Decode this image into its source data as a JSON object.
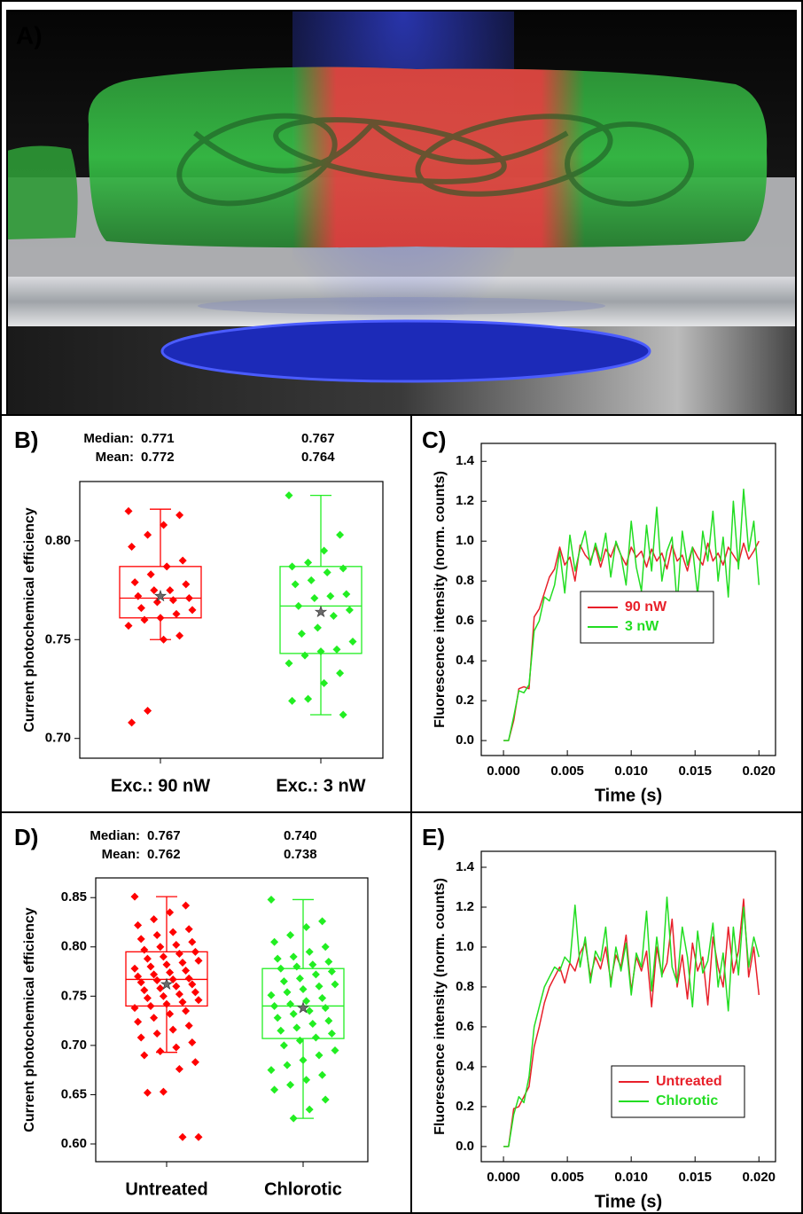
{
  "panel_a": {
    "label": "A)"
  },
  "chart_data": [
    {
      "type": "box",
      "panel_label": "B)",
      "ylabel": "Current photochemical efficiency",
      "stat_names": [
        "Median:",
        "Mean:"
      ],
      "ylim": [
        0.69,
        0.83
      ],
      "yticks": [
        {
          "value": 0.7,
          "label": "0.70"
        },
        {
          "value": 0.75,
          "label": "0.75"
        },
        {
          "value": 0.8,
          "label": "0.80"
        }
      ],
      "series": [
        {
          "name": "Exc.: 90 nW",
          "color": "#ff0000",
          "median": 0.771,
          "median_label": "0.771",
          "mean": 0.772,
          "mean_label": "0.772",
          "q1": 0.761,
          "q3": 0.787,
          "whisker_low": 0.75,
          "whisker_high": 0.816,
          "points": [
            0.815,
            0.813,
            0.808,
            0.803,
            0.797,
            0.79,
            0.787,
            0.783,
            0.779,
            0.778,
            0.775,
            0.775,
            0.772,
            0.771,
            0.77,
            0.769,
            0.766,
            0.765,
            0.763,
            0.761,
            0.76,
            0.757,
            0.752,
            0.75,
            0.714,
            0.708
          ]
        },
        {
          "name": "Exc.: 3 nW",
          "color": "#22ee22",
          "median": 0.767,
          "median_label": "0.767",
          "mean": 0.764,
          "mean_label": "0.764",
          "q1": 0.743,
          "q3": 0.787,
          "whisker_low": 0.712,
          "whisker_high": 0.823,
          "points": [
            0.823,
            0.803,
            0.795,
            0.789,
            0.787,
            0.786,
            0.784,
            0.78,
            0.778,
            0.773,
            0.772,
            0.771,
            0.767,
            0.765,
            0.762,
            0.756,
            0.753,
            0.749,
            0.745,
            0.744,
            0.742,
            0.738,
            0.733,
            0.728,
            0.72,
            0.719,
            0.712
          ]
        }
      ]
    },
    {
      "type": "line",
      "panel_label": "C)",
      "ylabel": "Fluorescence intensity (norm. counts)",
      "xlabel": "Time (s)",
      "legend": "center right",
      "xlim": [
        -0.00174,
        0.0213
      ],
      "ylim": [
        -0.075,
        1.49
      ],
      "xticks": [
        {
          "value": 0,
          "label": "0.000"
        },
        {
          "value": 0.005,
          "label": "0.005"
        },
        {
          "value": 0.01,
          "label": "0.010"
        },
        {
          "value": 0.015,
          "label": "0.015"
        },
        {
          "value": 0.02,
          "label": "0.020"
        }
      ],
      "yticks": [
        {
          "value": 0,
          "label": "0.0"
        },
        {
          "value": 0.2,
          "label": "0.2"
        },
        {
          "value": 0.4,
          "label": "0.4"
        },
        {
          "value": 0.6,
          "label": "0.6"
        },
        {
          "value": 0.8,
          "label": "0.8"
        },
        {
          "value": 1,
          "label": "1.0"
        },
        {
          "value": 1.2,
          "label": "1.2"
        },
        {
          "value": 1.4,
          "label": "1.4"
        }
      ],
      "x": [
        0,
        0.0004,
        0.0008,
        0.0012,
        0.0016,
        0.002,
        0.0024,
        0.0028,
        0.0032,
        0.0036,
        0.004,
        0.0044,
        0.0048,
        0.0052,
        0.0056,
        0.006,
        0.0064,
        0.0068,
        0.0072,
        0.0076,
        0.008,
        0.0084,
        0.0088,
        0.0092,
        0.0096,
        0.01,
        0.0104,
        0.0108,
        0.0112,
        0.0116,
        0.012,
        0.0124,
        0.0128,
        0.0132,
        0.0136,
        0.014,
        0.0144,
        0.0148,
        0.0152,
        0.0156,
        0.016,
        0.0164,
        0.0168,
        0.0172,
        0.0176,
        0.018,
        0.0184,
        0.0188,
        0.0192,
        0.0196,
        0.02
      ],
      "series": [
        {
          "name": "90 nW",
          "color": "#e8202a",
          "values": [
            0,
            0,
            0.1,
            0.26,
            0.27,
            0.26,
            0.62,
            0.66,
            0.74,
            0.82,
            0.86,
            0.97,
            0.88,
            0.92,
            0.8,
            0.98,
            0.93,
            0.9,
            0.97,
            0.87,
            0.96,
            0.92,
            0.99,
            0.93,
            0.88,
            0.97,
            0.92,
            0.95,
            0.87,
            0.96,
            0.9,
            0.94,
            0.86,
            0.98,
            0.9,
            0.93,
            0.85,
            0.97,
            0.92,
            0.88,
            0.99,
            0.9,
            0.94,
            0.88,
            0.97,
            0.93,
            0.89,
            0.99,
            0.91,
            0.95,
            1.0
          ]
        },
        {
          "name": "3 nW",
          "color": "#22dd22",
          "values": [
            0,
            0,
            0.12,
            0.25,
            0.24,
            0.28,
            0.55,
            0.6,
            0.72,
            0.7,
            0.78,
            0.95,
            0.74,
            1.03,
            0.85,
            0.96,
            1.05,
            0.88,
            0.99,
            0.9,
            1.04,
            0.82,
            1.0,
            0.93,
            0.78,
            1.1,
            0.87,
            0.75,
            1.08,
            0.85,
            1.17,
            0.8,
            0.95,
            1.02,
            0.68,
            1.05,
            0.88,
            0.97,
            0.73,
            1.05,
            0.9,
            1.15,
            0.8,
            1.02,
            0.72,
            1.2,
            0.86,
            1.26,
            0.95,
            1.1,
            0.78
          ]
        }
      ]
    },
    {
      "type": "box",
      "panel_label": "D)",
      "ylabel": "Current photochemical efficiency",
      "stat_names": [
        "Median:",
        "Mean:"
      ],
      "ylim": [
        0.582,
        0.87
      ],
      "yticks": [
        {
          "value": 0.6,
          "label": "0.60"
        },
        {
          "value": 0.65,
          "label": "0.65"
        },
        {
          "value": 0.7,
          "label": "0.70"
        },
        {
          "value": 0.75,
          "label": "0.75"
        },
        {
          "value": 0.8,
          "label": "0.80"
        },
        {
          "value": 0.85,
          "label": "0.85"
        }
      ],
      "series": [
        {
          "name": "Untreated",
          "color": "#ff0000",
          "median": 0.767,
          "median_label": "0.767",
          "mean": 0.762,
          "mean_label": "0.762",
          "q1": 0.74,
          "q3": 0.795,
          "whisker_low": 0.693,
          "whisker_high": 0.851,
          "points": [
            0.851,
            0.842,
            0.835,
            0.828,
            0.822,
            0.818,
            0.815,
            0.812,
            0.808,
            0.805,
            0.802,
            0.8,
            0.797,
            0.795,
            0.793,
            0.79,
            0.788,
            0.786,
            0.784,
            0.782,
            0.78,
            0.778,
            0.776,
            0.774,
            0.772,
            0.77,
            0.768,
            0.767,
            0.766,
            0.764,
            0.762,
            0.76,
            0.758,
            0.756,
            0.754,
            0.752,
            0.75,
            0.748,
            0.746,
            0.744,
            0.742,
            0.74,
            0.738,
            0.735,
            0.732,
            0.728,
            0.724,
            0.72,
            0.716,
            0.712,
            0.708,
            0.703,
            0.698,
            0.694,
            0.69,
            0.683,
            0.676,
            0.653,
            0.652,
            0.607,
            0.607
          ]
        },
        {
          "name": "Chlorotic",
          "color": "#22ee22",
          "median": 0.74,
          "median_label": "0.740",
          "mean": 0.738,
          "mean_label": "0.738",
          "q1": 0.707,
          "q3": 0.778,
          "whisker_low": 0.626,
          "whisker_high": 0.848,
          "points": [
            0.848,
            0.826,
            0.82,
            0.812,
            0.805,
            0.8,
            0.795,
            0.79,
            0.788,
            0.785,
            0.782,
            0.78,
            0.778,
            0.775,
            0.772,
            0.768,
            0.765,
            0.762,
            0.76,
            0.757,
            0.754,
            0.751,
            0.748,
            0.745,
            0.742,
            0.74,
            0.738,
            0.735,
            0.732,
            0.728,
            0.725,
            0.722,
            0.718,
            0.715,
            0.712,
            0.708,
            0.705,
            0.7,
            0.695,
            0.69,
            0.685,
            0.68,
            0.675,
            0.67,
            0.665,
            0.66,
            0.655,
            0.645,
            0.635,
            0.626
          ]
        }
      ]
    },
    {
      "type": "line",
      "panel_label": "E)",
      "ylabel": "Fluorescence intensity (norm. counts)",
      "xlabel": "Time (s)",
      "legend": "lower right",
      "xlim": [
        -0.00174,
        0.0213
      ],
      "ylim": [
        -0.076,
        1.48
      ],
      "xticks": [
        {
          "value": 0,
          "label": "0.000"
        },
        {
          "value": 0.005,
          "label": "0.005"
        },
        {
          "value": 0.01,
          "label": "0.010"
        },
        {
          "value": 0.015,
          "label": "0.015"
        },
        {
          "value": 0.02,
          "label": "0.020"
        }
      ],
      "yticks": [
        {
          "value": 0,
          "label": "0.0"
        },
        {
          "value": 0.2,
          "label": "0.2"
        },
        {
          "value": 0.4,
          "label": "0.4"
        },
        {
          "value": 0.6,
          "label": "0.6"
        },
        {
          "value": 0.8,
          "label": "0.8"
        },
        {
          "value": 1,
          "label": "1.0"
        },
        {
          "value": 1.2,
          "label": "1.2"
        },
        {
          "value": 1.4,
          "label": "1.4"
        }
      ],
      "x": [
        0,
        0.0004,
        0.0008,
        0.0012,
        0.0016,
        0.002,
        0.0024,
        0.0028,
        0.0032,
        0.0036,
        0.004,
        0.0044,
        0.0048,
        0.0052,
        0.0056,
        0.006,
        0.0064,
        0.0068,
        0.0072,
        0.0076,
        0.008,
        0.0084,
        0.0088,
        0.0092,
        0.0096,
        0.01,
        0.0104,
        0.0108,
        0.0112,
        0.0116,
        0.012,
        0.0124,
        0.0128,
        0.0132,
        0.0136,
        0.014,
        0.0144,
        0.0148,
        0.0152,
        0.0156,
        0.016,
        0.0164,
        0.0168,
        0.0172,
        0.0176,
        0.018,
        0.0184,
        0.0188,
        0.0192,
        0.0196,
        0.02
      ],
      "series": [
        {
          "name": "Untreated",
          "color": "#e8202a",
          "values": [
            0,
            0,
            0.19,
            0.2,
            0.25,
            0.3,
            0.5,
            0.6,
            0.72,
            0.8,
            0.85,
            0.9,
            0.82,
            0.92,
            0.88,
            0.97,
            1.02,
            0.85,
            0.95,
            0.89,
            1.0,
            0.83,
            0.96,
            0.9,
            1.06,
            0.78,
            0.95,
            0.88,
            0.98,
            0.7,
            1.0,
            0.86,
            0.92,
            1.14,
            0.8,
            0.96,
            0.74,
            1.02,
            0.88,
            0.95,
            0.71,
            1.05,
            0.9,
            0.8,
            1.1,
            0.87,
            0.98,
            1.24,
            0.85,
            1.0,
            0.76
          ]
        },
        {
          "name": "Chlorotic",
          "color": "#22dd22",
          "values": [
            0,
            0,
            0.16,
            0.25,
            0.22,
            0.35,
            0.6,
            0.7,
            0.8,
            0.85,
            0.9,
            0.88,
            0.95,
            0.92,
            1.21,
            0.9,
            1.05,
            0.82,
            0.98,
            0.93,
            1.1,
            0.8,
            1.0,
            0.88,
            1.02,
            0.76,
            0.97,
            0.9,
            1.18,
            0.78,
            1.05,
            0.85,
            1.25,
            0.9,
            0.82,
            1.1,
            0.95,
            0.7,
            1.08,
            0.87,
            0.93,
            1.12,
            0.8,
            0.97,
            0.68,
            1.1,
            0.86,
            1.2,
            0.9,
            1.05,
            0.95
          ]
        }
      ]
    }
  ]
}
